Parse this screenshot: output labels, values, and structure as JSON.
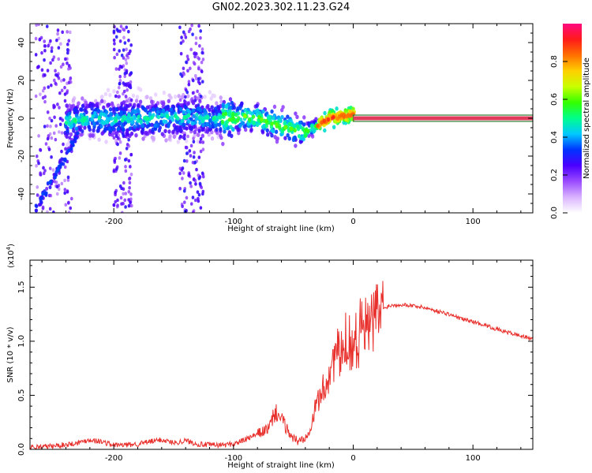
{
  "title": "GN02.2023.302.11.23.G24",
  "colors": {
    "snr_line": "#e8302c",
    "frame": "#000000",
    "ref_line_fill": "#e23a5a",
    "ref_line_edge": "#2e7d32"
  },
  "chart_data": [
    {
      "type": "heatmap",
      "xlabel": "Height of straight line (km)",
      "ylabel": "Frequency (Hz)",
      "xlim": [
        -270,
        150
      ],
      "ylim": [
        -50,
        50
      ],
      "x_ticks": [
        -200,
        -100,
        0,
        100
      ],
      "y_ticks": [
        -40,
        -20,
        0,
        20,
        40
      ],
      "colorbar": {
        "label": "Normalized spectral amplitude",
        "range": [
          0,
          1
        ],
        "ticks": [
          "0.0",
          "0.2",
          "0.4",
          "0.6",
          "0.8"
        ],
        "ticks_values": [
          0,
          0.2,
          0.4,
          0.6,
          0.8
        ],
        "colormap": [
          "#ffffff",
          "#d9b3ff",
          "#9a4bff",
          "#4b00ff",
          "#0033ff",
          "#00c8ff",
          "#00ff8c",
          "#33ff00",
          "#c8ff00",
          "#ffd000",
          "#ff7000",
          "#ff1a1a",
          "#ff0a80"
        ]
      },
      "ridge": {
        "x": [
          -240,
          -220,
          -200,
          -180,
          -160,
          -140,
          -120,
          -100,
          -90,
          -80,
          -70,
          -60,
          -50,
          -40,
          -30,
          -20,
          -10,
          0
        ],
        "y": [
          -2,
          0,
          -1,
          0,
          0,
          1,
          0,
          0,
          1,
          0,
          -2,
          -4,
          -6,
          -7,
          -4,
          0,
          1,
          2
        ]
      },
      "reference_line": {
        "x": [
          0,
          150
        ],
        "y": 0
      }
    },
    {
      "type": "line",
      "xlabel": "Height of straight line (km)",
      "ylabel": "SNR (10 * v/v)",
      "y_scale_label": "(x10",
      "y_scale_exp": "4",
      "y_scale_close": ")",
      "xlim": [
        -270,
        150
      ],
      "ylim": [
        0,
        1.75
      ],
      "x_ticks": [
        -200,
        -100,
        0,
        100
      ],
      "y_ticks": [
        "0.0",
        "0.5",
        "1.0",
        "1.5"
      ],
      "y_ticks_values": [
        0,
        0.5,
        1.0,
        1.5
      ],
      "series": [
        {
          "x": [
            -270,
            -250,
            -230,
            -220,
            -210,
            -200,
            -190,
            -180,
            -170,
            -160,
            -150,
            -140,
            -130,
            -120,
            -110,
            -100,
            -90,
            -80,
            -70,
            -65,
            -60,
            -55,
            -50,
            -45,
            -40,
            -35,
            -30,
            -25,
            -20,
            -15,
            -10,
            -5,
            0,
            5,
            8,
            10,
            15,
            20,
            25,
            30,
            40,
            50,
            60,
            70,
            80,
            90,
            100,
            110,
            120,
            130,
            140,
            150
          ],
          "y": [
            0.02,
            0.03,
            0.06,
            0.09,
            0.07,
            0.04,
            0.04,
            0.05,
            0.07,
            0.09,
            0.06,
            0.08,
            0.05,
            0.04,
            0.04,
            0.05,
            0.09,
            0.14,
            0.2,
            0.35,
            0.28,
            0.18,
            0.1,
            0.07,
            0.12,
            0.22,
            0.45,
            0.55,
            0.7,
            0.9,
            0.85,
            1.05,
            0.95,
            1.05,
            1.4,
            1.1,
            1.15,
            1.25,
            1.3,
            1.33,
            1.34,
            1.33,
            1.31,
            1.28,
            1.25,
            1.21,
            1.18,
            1.15,
            1.11,
            1.08,
            1.05,
            1.02
          ]
        }
      ]
    }
  ]
}
